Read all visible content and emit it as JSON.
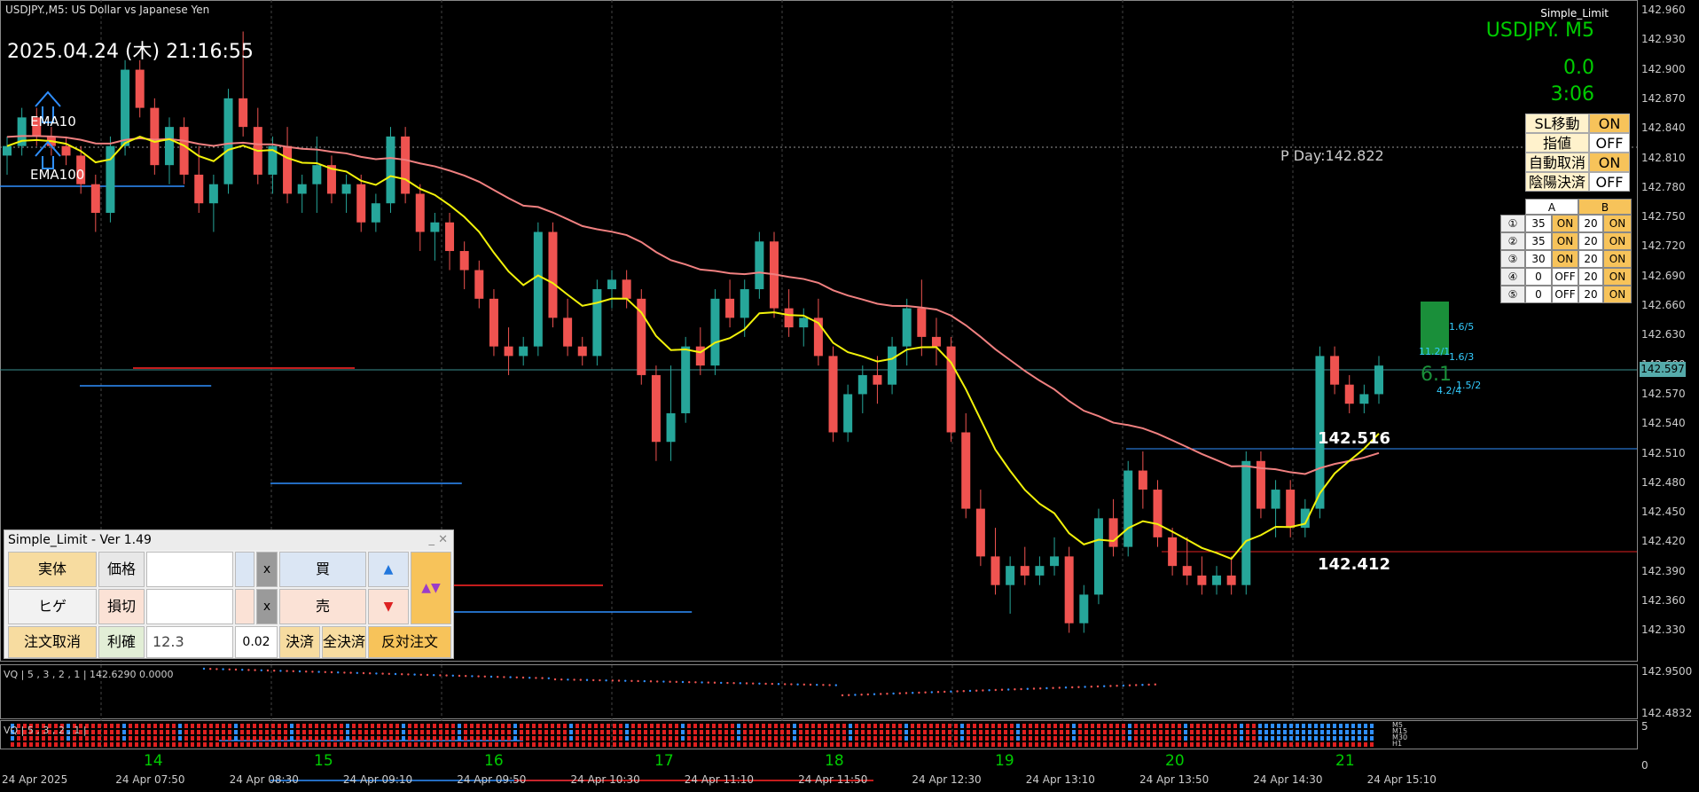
{
  "symbol_line": "USDJPY.,M5:  US Dollar vs Japanese Yen",
  "clock": "2025.04.24 (木) 21:16:55",
  "ema_fast": "EMA10",
  "ema_slow": "EMA100",
  "top_right": {
    "title": "Simple_Limit",
    "symbol": "USDJPY.  M5",
    "val1": "0.0",
    "val2": "3:06"
  },
  "pday": "P Day:142.822",
  "levels": {
    "upper": "142.516",
    "lower": "142.412",
    "pos_count": "6.1"
  },
  "right_small": [
    "1.6/5",
    "11.2/1",
    "1.6/3",
    "4.2/4",
    "1.5/2"
  ],
  "price_axis": [
    "142.960",
    "142.930",
    "142.900",
    "142.870",
    "142.840",
    "142.810",
    "142.780",
    "142.750",
    "142.720",
    "142.690",
    "142.660",
    "142.630",
    "142.600",
    "142.570",
    "142.540",
    "142.510",
    "142.480",
    "142.450",
    "142.420",
    "142.390",
    "142.360",
    "142.330"
  ],
  "current_price": "142.597",
  "toggles": [
    {
      "label": "SL移動",
      "value": "ON"
    },
    {
      "label": "指値",
      "value": "OFF"
    },
    {
      "label": "自動取消",
      "value": "ON"
    },
    {
      "label": "陰陽決済",
      "value": "OFF"
    }
  ],
  "ab_table": {
    "head": [
      "A",
      "B"
    ],
    "rows": [
      [
        "①",
        "35",
        "ON",
        "20",
        "ON"
      ],
      [
        "②",
        "35",
        "ON",
        "20",
        "ON"
      ],
      [
        "③",
        "30",
        "ON",
        "20",
        "ON"
      ],
      [
        "④",
        "0",
        "OFF",
        "20",
        "ON"
      ],
      [
        "⑤",
        "0",
        "OFF",
        "20",
        "ON"
      ]
    ]
  },
  "panel": {
    "title": "Simple_Limit - Ver 1.49",
    "ctrl": "_  ✕",
    "jittai": "実体",
    "kakaku": "価格",
    "x1": "x",
    "buy": "買",
    "hige": "ヒゲ",
    "songiri": "損切",
    "x2": "x",
    "sell": "売",
    "cancel": "注文取消",
    "rikaku": "利確",
    "rikaku_val": "12.3",
    "step": "0.02",
    "kessai": "決済",
    "all_kessai": "全決済",
    "reverse": "反対注文",
    "up": "▲",
    "down": "▼",
    "updown": "▲▼"
  },
  "vq1": "VQ | 5 , 3 , 2 , 1  | 142.6290 0.0000",
  "vq1_axis": [
    "142.9500",
    "142.4832"
  ],
  "vq2": "VQ | 5 , 3 , 2 , 1  |",
  "vq2_axis": [
    "5",
    "0"
  ],
  "vq2_tf": [
    "M5",
    "M15",
    "M30",
    "H1"
  ],
  "days": [
    {
      "d": "14",
      "x": 162
    },
    {
      "d": "15",
      "x": 354
    },
    {
      "d": "16",
      "x": 546
    },
    {
      "d": "17",
      "x": 738
    },
    {
      "d": "18",
      "x": 930
    },
    {
      "d": "19",
      "x": 1122
    },
    {
      "d": "20",
      "x": 1314
    },
    {
      "d": "21",
      "x": 1506
    }
  ],
  "times": [
    "24 Apr 2025",
    "24 Apr 07:50",
    "24 Apr 08:30",
    "24 Apr 09:10",
    "24 Apr 09:50",
    "24 Apr 10:30",
    "24 Apr 11:10",
    "24 Apr 11:50",
    "24 Apr 12:30",
    "24 Apr 13:10",
    "24 Apr 13:50",
    "24 Apr 14:30",
    "24 Apr 15:10"
  ],
  "chart_data": {
    "type": "candlestick",
    "title": "USDJPY., M5",
    "ylim": [
      142.3,
      142.97
    ],
    "candles": [
      [
        142.82,
        142.84,
        142.8,
        142.83
      ],
      [
        142.83,
        142.87,
        142.82,
        142.86
      ],
      [
        142.86,
        142.87,
        142.83,
        142.84
      ],
      [
        142.84,
        142.85,
        142.82,
        142.83
      ],
      [
        142.83,
        142.84,
        142.81,
        142.82
      ],
      [
        142.82,
        142.83,
        142.78,
        142.79
      ],
      [
        142.79,
        142.8,
        142.74,
        142.76
      ],
      [
        142.76,
        142.84,
        142.75,
        142.83
      ],
      [
        142.83,
        142.92,
        142.82,
        142.91
      ],
      [
        142.91,
        142.92,
        142.86,
        142.87
      ],
      [
        142.87,
        142.88,
        142.8,
        142.81
      ],
      [
        142.81,
        142.86,
        142.79,
        142.85
      ],
      [
        142.85,
        142.86,
        142.79,
        142.8
      ],
      [
        142.8,
        142.83,
        142.76,
        142.77
      ],
      [
        142.77,
        142.8,
        142.74,
        142.79
      ],
      [
        142.79,
        142.89,
        142.78,
        142.88
      ],
      [
        142.88,
        142.95,
        142.84,
        142.85
      ],
      [
        142.85,
        142.87,
        142.79,
        142.8
      ],
      [
        142.8,
        142.84,
        142.78,
        142.83
      ],
      [
        142.83,
        142.85,
        142.77,
        142.78
      ],
      [
        142.78,
        142.8,
        142.76,
        142.79
      ],
      [
        142.79,
        142.84,
        142.76,
        142.81
      ],
      [
        142.81,
        142.82,
        142.77,
        142.78
      ],
      [
        142.78,
        142.8,
        142.76,
        142.79
      ],
      [
        142.79,
        142.8,
        142.74,
        142.75
      ],
      [
        142.75,
        142.78,
        142.74,
        142.77
      ],
      [
        142.77,
        142.85,
        142.76,
        142.84
      ],
      [
        142.84,
        142.85,
        142.77,
        142.78
      ],
      [
        142.78,
        142.79,
        142.72,
        142.74
      ],
      [
        142.74,
        142.76,
        142.71,
        142.75
      ],
      [
        142.75,
        142.76,
        142.7,
        142.72
      ],
      [
        142.72,
        142.73,
        142.68,
        142.7
      ],
      [
        142.7,
        142.71,
        142.66,
        142.67
      ],
      [
        142.67,
        142.68,
        142.61,
        142.62
      ],
      [
        142.62,
        142.64,
        142.59,
        142.61
      ],
      [
        142.61,
        142.63,
        142.6,
        142.62
      ],
      [
        142.62,
        142.75,
        142.61,
        142.74
      ],
      [
        142.74,
        142.75,
        142.64,
        142.65
      ],
      [
        142.65,
        142.67,
        142.61,
        142.62
      ],
      [
        142.62,
        142.63,
        142.6,
        142.61
      ],
      [
        142.61,
        142.69,
        142.6,
        142.68
      ],
      [
        142.68,
        142.7,
        142.66,
        142.69
      ],
      [
        142.69,
        142.7,
        142.66,
        142.67
      ],
      [
        142.67,
        142.68,
        142.58,
        142.59
      ],
      [
        142.59,
        142.6,
        142.5,
        142.52
      ],
      [
        142.52,
        142.6,
        142.5,
        142.55
      ],
      [
        142.55,
        142.63,
        142.54,
        142.62
      ],
      [
        142.62,
        142.64,
        142.59,
        142.6
      ],
      [
        142.6,
        142.68,
        142.59,
        142.67
      ],
      [
        142.67,
        142.69,
        142.64,
        142.65
      ],
      [
        142.65,
        142.69,
        142.63,
        142.68
      ],
      [
        142.68,
        142.74,
        142.67,
        142.73
      ],
      [
        142.73,
        142.74,
        142.65,
        142.66
      ],
      [
        142.66,
        142.68,
        142.63,
        142.64
      ],
      [
        142.64,
        142.66,
        142.62,
        142.65
      ],
      [
        142.65,
        142.67,
        142.6,
        142.61
      ],
      [
        142.61,
        142.62,
        142.52,
        142.53
      ],
      [
        142.53,
        142.58,
        142.52,
        142.57
      ],
      [
        142.57,
        142.6,
        142.55,
        142.59
      ],
      [
        142.59,
        142.61,
        142.56,
        142.58
      ],
      [
        142.58,
        142.63,
        142.57,
        142.62
      ],
      [
        142.62,
        142.67,
        142.6,
        142.66
      ],
      [
        142.66,
        142.69,
        142.61,
        142.63
      ],
      [
        142.63,
        142.65,
        142.6,
        142.62
      ],
      [
        142.62,
        142.63,
        142.52,
        142.53
      ],
      [
        142.53,
        142.55,
        142.44,
        142.45
      ],
      [
        142.45,
        142.47,
        142.39,
        142.4
      ],
      [
        142.4,
        142.43,
        142.36,
        142.37
      ],
      [
        142.37,
        142.4,
        142.34,
        142.39
      ],
      [
        142.39,
        142.41,
        142.37,
        142.38
      ],
      [
        142.38,
        142.4,
        142.37,
        142.39
      ],
      [
        142.39,
        142.42,
        142.38,
        142.4
      ],
      [
        142.4,
        142.41,
        142.32,
        142.33
      ],
      [
        142.33,
        142.37,
        142.32,
        142.36
      ],
      [
        142.36,
        142.45,
        142.35,
        142.44
      ],
      [
        142.44,
        142.46,
        142.4,
        142.41
      ],
      [
        142.41,
        142.5,
        142.4,
        142.49
      ],
      [
        142.49,
        142.51,
        142.45,
        142.47
      ],
      [
        142.47,
        142.48,
        142.41,
        142.42
      ],
      [
        142.42,
        142.43,
        142.38,
        142.39
      ],
      [
        142.39,
        142.42,
        142.37,
        142.38
      ],
      [
        142.38,
        142.4,
        142.36,
        142.37
      ],
      [
        142.37,
        142.39,
        142.36,
        142.38
      ],
      [
        142.38,
        142.4,
        142.36,
        142.37
      ],
      [
        142.37,
        142.51,
        142.36,
        142.5
      ],
      [
        142.5,
        142.51,
        142.44,
        142.45
      ],
      [
        142.45,
        142.48,
        142.42,
        142.47
      ],
      [
        142.47,
        142.48,
        142.42,
        142.43
      ],
      [
        142.43,
        142.46,
        142.42,
        142.45
      ],
      [
        142.45,
        142.62,
        142.44,
        142.61
      ],
      [
        142.61,
        142.62,
        142.57,
        142.58
      ],
      [
        142.58,
        142.59,
        142.55,
        142.56
      ],
      [
        142.56,
        142.58,
        142.55,
        142.57
      ],
      [
        142.57,
        142.61,
        142.56,
        142.6
      ]
    ],
    "ema10_label": "EMA10",
    "ema100_label": "EMA100"
  }
}
